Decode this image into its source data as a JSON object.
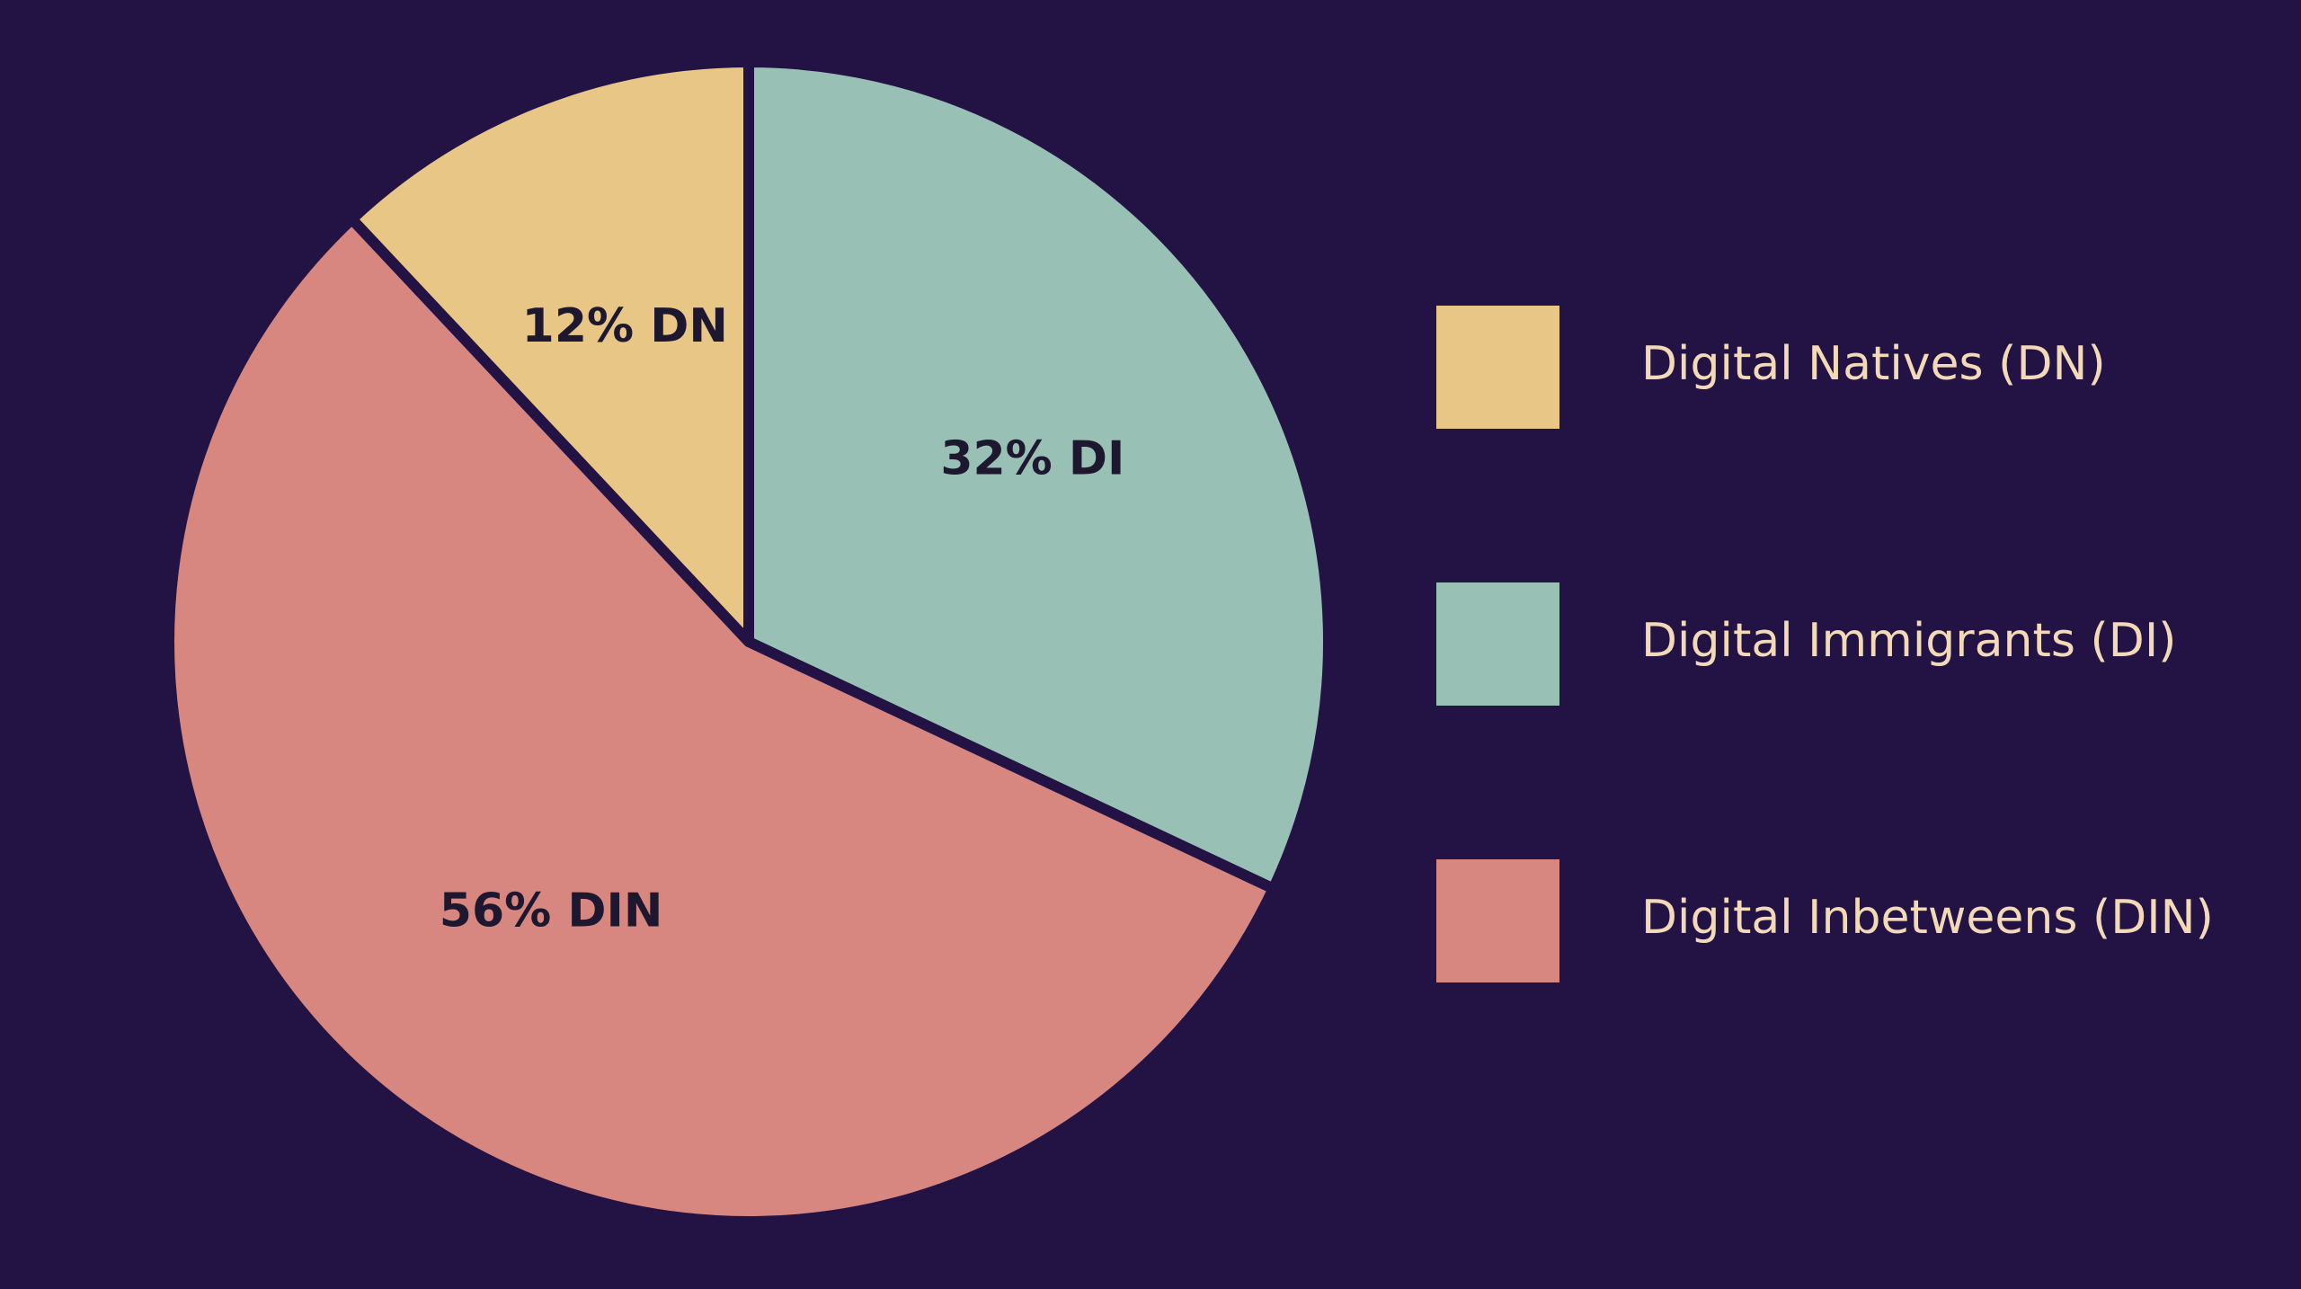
{
  "chart_data": {
    "type": "pie",
    "categories": [
      "Digital Natives (DN)",
      "Digital Immigrants (DI)",
      "Digital Inbetweens (DIN)"
    ],
    "values": [
      12,
      32,
      56
    ],
    "value_labels": [
      "12% DN",
      "32% DI",
      "56% DIN"
    ],
    "colors": [
      "#e8c786",
      "#98c0b4",
      "#d78680"
    ]
  }
}
